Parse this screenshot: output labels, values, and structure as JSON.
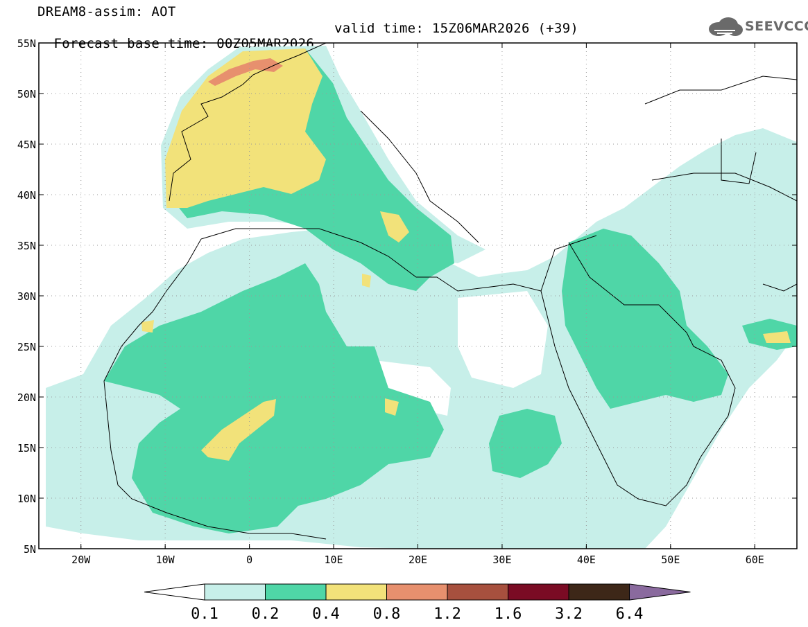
{
  "header": {
    "title_line1": "DREAM8-assim: AOT",
    "base_time_label": "Forecast base time: 00Z05MAR2026",
    "valid_time_label": "valid time: 15Z06MAR2026 (+39)"
  },
  "logo": {
    "text": "SEEVCCC",
    "icon": "cloud-icon"
  },
  "map": {
    "region": "North Africa, Europe, Middle East",
    "variable": "AOT",
    "lon_range": [
      -25,
      65
    ],
    "lat_range": [
      5,
      55
    ],
    "lat_ticks": [
      "55N",
      "50N",
      "45N",
      "40N",
      "35N",
      "30N",
      "25N",
      "20N",
      "15N",
      "10N",
      "5N"
    ],
    "lon_ticks": [
      "20W",
      "10W",
      "0",
      "10E",
      "20E",
      "30E",
      "40E",
      "50E",
      "60E"
    ],
    "grid": "dotted"
  },
  "colorbar": {
    "labels": [
      "0.1",
      "0.2",
      "0.4",
      "0.8",
      "1.2",
      "1.6",
      "3.2",
      "6.4"
    ],
    "colors": [
      "#ffffff",
      "#c7efe9",
      "#4fd6a7",
      "#f2e27a",
      "#e7906e",
      "#a7503e",
      "#7a0b24",
      "#3d2718",
      "#8a6a9e"
    ]
  }
}
